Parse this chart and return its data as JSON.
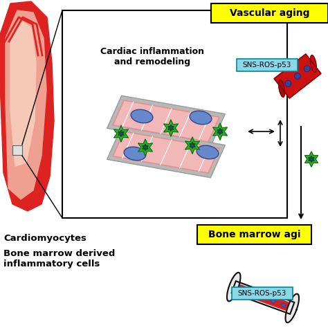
{
  "bg_color": "#ffffff",
  "vascular_aging_label": "Vascular aging",
  "vascular_aging_bg": "#ffff00",
  "bone_marrow_label": "Bone marrow agi",
  "bone_marrow_bg": "#ffff00",
  "sns_ros_p53_label": "SNS-ROS-p53",
  "sns_ros_p53_bg": "#88d8e8",
  "cardiac_text": "Cardiac inflammation\nand remodeling",
  "cardiomyocytes_label": "Cardiomyocytes",
  "bone_marrow_derived_label": "Bone marrow derived\ninflammatory cells",
  "heart_red": "#dd2222",
  "heart_light": "#f0a090",
  "heart_pink": "#f5c8b8",
  "muscle_pink": "#f2b8b8",
  "muscle_border": "#e09090",
  "muscle_gray": "#b8b8b8",
  "nucleus_blue": "#6688cc",
  "cell_green": "#33aa33",
  "cell_dark": "#115511",
  "cell_nucleus": "#002299",
  "bone_white": "#f0f0f0",
  "bone_gray": "#cccccc",
  "bone_red": "#cc2222",
  "bone_outline": "#111111",
  "vessel_red": "#cc1111",
  "vessel_dark": "#880000"
}
